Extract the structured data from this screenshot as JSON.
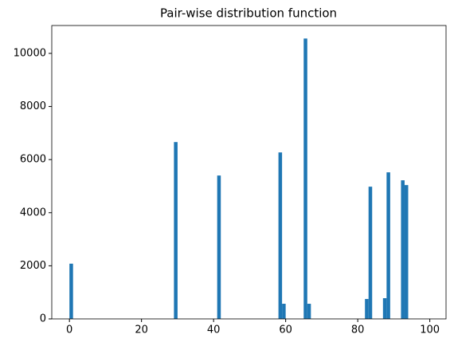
{
  "chart_data": {
    "type": "histogram",
    "title": "Pair-wise distribution function",
    "bins": [
      0,
      1,
      2,
      3,
      4,
      5,
      6,
      7,
      8,
      9,
      10,
      11,
      12,
      13,
      14,
      15,
      16,
      17,
      18,
      19,
      20,
      21,
      22,
      23,
      24,
      25,
      26,
      27,
      28,
      29,
      30,
      31,
      32,
      33,
      34,
      35,
      36,
      37,
      38,
      39,
      40,
      41,
      42,
      43,
      44,
      45,
      46,
      47,
      48,
      49,
      50,
      51,
      52,
      53,
      54,
      55,
      56,
      57,
      58,
      59,
      60,
      61,
      62,
      63,
      64,
      65,
      66,
      67,
      68,
      69,
      70,
      71,
      72,
      73,
      74,
      75,
      76,
      77,
      78,
      79,
      80,
      81,
      82,
      83,
      84,
      85,
      86,
      87,
      88,
      89,
      90,
      91,
      92,
      93,
      94,
      95,
      96,
      97,
      98,
      99,
      100
    ],
    "values": [
      2080,
      0,
      0,
      0,
      0,
      0,
      0,
      0,
      0,
      0,
      0,
      0,
      0,
      0,
      0,
      0,
      0,
      0,
      0,
      0,
      0,
      0,
      0,
      0,
      0,
      0,
      0,
      0,
      0,
      6660,
      0,
      0,
      0,
      0,
      0,
      0,
      0,
      0,
      0,
      0,
      0,
      5400,
      0,
      0,
      0,
      0,
      0,
      0,
      0,
      0,
      0,
      0,
      0,
      0,
      0,
      0,
      0,
      0,
      6270,
      570,
      0,
      0,
      0,
      0,
      0,
      10560,
      570,
      0,
      0,
      0,
      0,
      0,
      0,
      0,
      0,
      0,
      0,
      0,
      0,
      0,
      0,
      0,
      750,
      4980,
      0,
      0,
      0,
      780,
      5520,
      0,
      0,
      0,
      5220,
      5040,
      0,
      0,
      0,
      0,
      0,
      0
    ],
    "color": "#1f77b4",
    "xlim": [
      -4.9,
      104.5
    ],
    "xticks": [
      0,
      20,
      40,
      60,
      80,
      100
    ],
    "ylim": [
      0,
      11050
    ],
    "yticks": [
      0,
      2000,
      4000,
      6000,
      8000,
      10000
    ],
    "grid": false
  }
}
